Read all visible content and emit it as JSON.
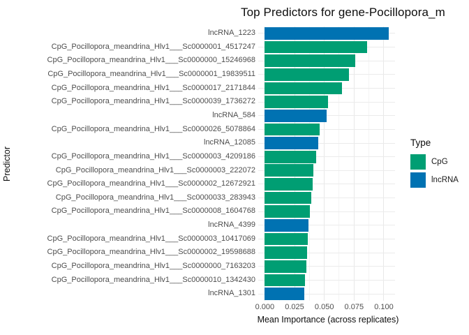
{
  "title": "Top Predictors for gene-Pocillopora_m",
  "axes": {
    "x_label": "Mean Importance (across replicates)",
    "y_label": "Predictor",
    "x_tick_labels": [
      "0.000",
      "0.025",
      "0.050",
      "0.075",
      "0.100"
    ]
  },
  "legend": {
    "title": "Type",
    "items": [
      {
        "label": "CpG",
        "color": "#009E73"
      },
      {
        "label": "lncRNA",
        "color": "#0072B2"
      }
    ]
  },
  "colors": {
    "CpG": "#009E73",
    "lncRNA": "#0072B2",
    "grid_major": "#e8e8e8",
    "grid_minor": "#f4f4f4",
    "axis_text": "#4d4d4d"
  },
  "chart_data": {
    "type": "bar",
    "orientation": "horizontal",
    "title": "Top Predictors for gene-Pocillopora_m",
    "xlabel": "Mean Importance (across replicates)",
    "ylabel": "Predictor",
    "legend_position": "right",
    "grid": true,
    "xlim": [
      -0.0055,
      0.1094
    ],
    "x_major_ticks": [
      0,
      0.025,
      0.05,
      0.075,
      0.1
    ],
    "x_minor_ticks": [
      0.0125,
      0.0375,
      0.0625,
      0.0875
    ],
    "categories": [
      "lncRNA_1223",
      "CpG_Pocillopora_meandrina_Hlv1___Sc0000001_4517247",
      "CpG_Pocillopora_meandrina_Hlv1___Sc0000000_15246968",
      "CpG_Pocillopora_meandrina_Hlv1___Sc0000001_19839511",
      "CpG_Pocillopora_meandrina_Hlv1___Sc0000017_2171844",
      "CpG_Pocillopora_meandrina_Hlv1___Sc0000039_1736272",
      "lncRNA_584",
      "CpG_Pocillopora_meandrina_Hlv1___Sc0000026_5078864",
      "lncRNA_12085",
      "CpG_Pocillopora_meandrina_Hlv1___Sc0000003_4209186",
      "CpG_Pocillopora_meandrina_Hlv1___Sc0000003_222072",
      "CpG_Pocillopora_meandrina_Hlv1___Sc0000002_12672921",
      "CpG_Pocillopora_meandrina_Hlv1___Sc0000033_283943",
      "CpG_Pocillopora_meandrina_Hlv1___Sc0000008_1604768",
      "lncRNA_4399",
      "CpG_Pocillopora_meandrina_Hlv1___Sc0000003_10417069",
      "CpG_Pocillopora_meandrina_Hlv1___Sc0000002_19598688",
      "CpG_Pocillopora_meandrina_Hlv1___Sc0000000_7163203",
      "CpG_Pocillopora_meandrina_Hlv1___Sc0000010_1342430",
      "lncRNA_1301"
    ],
    "values": [
      0.104,
      0.086,
      0.076,
      0.071,
      0.065,
      0.053,
      0.052,
      0.046,
      0.045,
      0.043,
      0.041,
      0.04,
      0.039,
      0.038,
      0.037,
      0.036,
      0.0355,
      0.035,
      0.034,
      0.033
    ],
    "types": [
      "lncRNA",
      "CpG",
      "CpG",
      "CpG",
      "CpG",
      "CpG",
      "lncRNA",
      "CpG",
      "lncRNA",
      "CpG",
      "CpG",
      "CpG",
      "CpG",
      "CpG",
      "lncRNA",
      "CpG",
      "CpG",
      "CpG",
      "CpG",
      "lncRNA"
    ]
  }
}
